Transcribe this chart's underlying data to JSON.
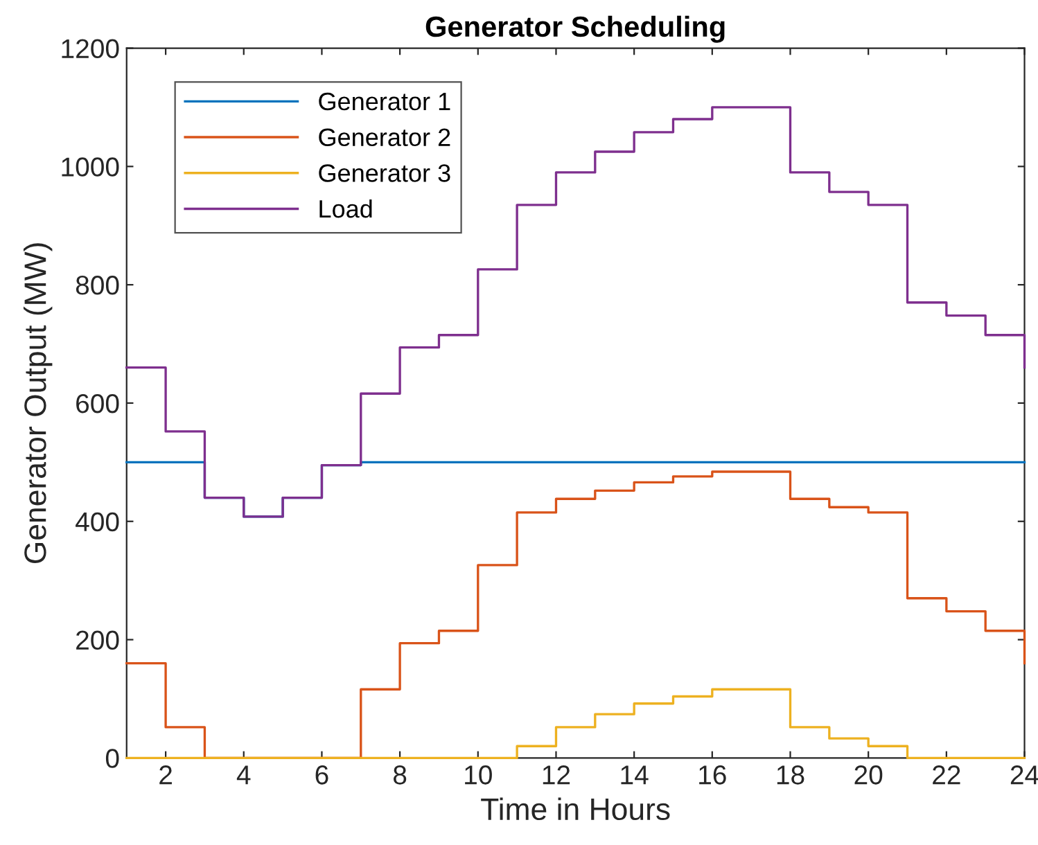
{
  "chart_data": {
    "type": "step",
    "title": "Generator Scheduling",
    "xlabel": "Time in Hours",
    "ylabel": "Generator Output (MW)",
    "x": [
      1,
      2,
      3,
      4,
      5,
      6,
      7,
      8,
      9,
      10,
      11,
      12,
      13,
      14,
      15,
      16,
      17,
      18,
      19,
      20,
      21,
      22,
      23,
      24
    ],
    "series": [
      {
        "name": "Generator 1",
        "color": "#0072bd",
        "values": [
          500,
          500,
          440,
          408,
          440,
          495,
          500,
          500,
          500,
          500,
          500,
          500,
          500,
          500,
          500,
          500,
          500,
          500,
          500,
          500,
          500,
          500,
          500,
          500
        ]
      },
      {
        "name": "Generator 2",
        "color": "#d95319",
        "values": [
          160,
          52,
          0,
          0,
          0,
          0,
          116,
          194,
          215,
          326,
          415,
          438,
          452,
          466,
          476,
          484,
          484,
          438,
          424,
          415,
          270,
          248,
          215,
          160
        ]
      },
      {
        "name": "Generator 3",
        "color": "#edb120",
        "values": [
          0,
          0,
          0,
          0,
          0,
          0,
          0,
          0,
          0,
          0,
          20,
          52,
          74,
          92,
          104,
          116,
          116,
          52,
          33,
          20,
          0,
          0,
          0,
          0
        ]
      },
      {
        "name": "Load",
        "color": "#7e2f8e",
        "values": [
          660,
          552,
          440,
          408,
          440,
          495,
          616,
          694,
          715,
          826,
          935,
          990,
          1025,
          1058,
          1080,
          1100,
          1100,
          990,
          957,
          935,
          770,
          748,
          715,
          660
        ]
      }
    ],
    "xlim": [
      1,
      24
    ],
    "xticks": [
      2,
      4,
      6,
      8,
      10,
      12,
      14,
      16,
      18,
      20,
      22,
      24
    ],
    "ylim": [
      0,
      1200
    ],
    "yticks": [
      0,
      200,
      400,
      600,
      800,
      1000,
      1200
    ],
    "grid": false,
    "legend": "top left",
    "line_style": "solid",
    "marker": "none"
  }
}
